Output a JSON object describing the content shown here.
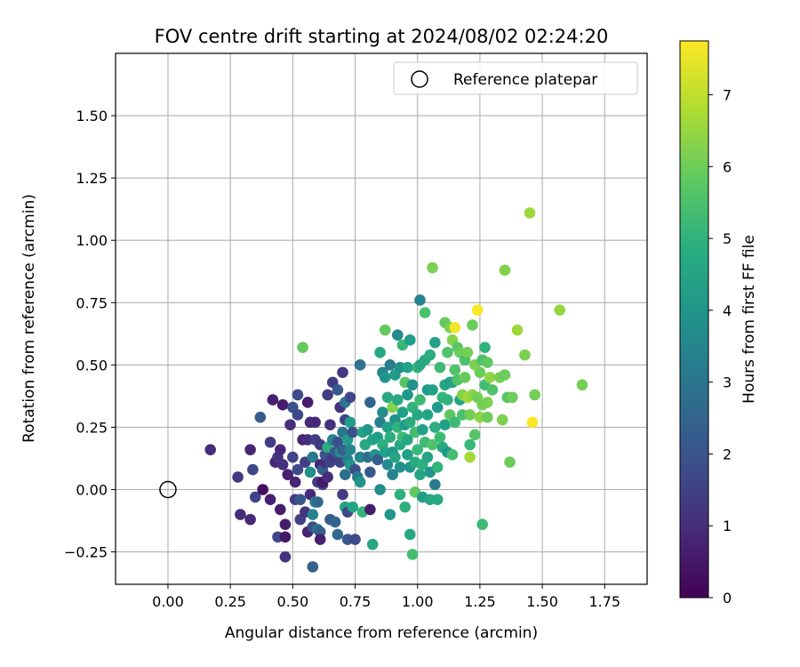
{
  "chart_data": {
    "type": "scatter",
    "title": "FOV centre drift starting at 2024/08/02 02:24:20",
    "xlabel": "Angular distance from reference (arcmin)",
    "ylabel": "Rotation from reference (arcmin)",
    "xlim": [
      -0.21,
      1.92
    ],
    "ylim": [
      -0.38,
      1.75
    ],
    "x_ticks": [
      "0.00",
      "0.25",
      "0.50",
      "0.75",
      "1.00",
      "1.25",
      "1.50",
      "1.75"
    ],
    "y_ticks": [
      "−0.25",
      "0.00",
      "0.25",
      "0.50",
      "0.75",
      "1.00",
      "1.25",
      "1.50"
    ],
    "grid": true,
    "legend": {
      "position": "top-right",
      "entries": [
        {
          "label": "Reference platepar",
          "marker": "open-circle"
        }
      ]
    },
    "reference_point": {
      "x": 0.0,
      "y": 0.0
    },
    "colorbar": {
      "label": "Hours from first FF file",
      "min": 0,
      "max": 7.75,
      "ticks": [
        "0",
        "1",
        "2",
        "3",
        "4",
        "5",
        "6",
        "7"
      ],
      "colormap": "viridis"
    },
    "points": [
      {
        "x": 0.17,
        "y": 0.16,
        "c": 1.0
      },
      {
        "x": 0.28,
        "y": 0.05,
        "c": 1.3
      },
      {
        "x": 0.29,
        "y": -0.1,
        "c": 1.0
      },
      {
        "x": 0.33,
        "y": 0.16,
        "c": 0.8
      },
      {
        "x": 0.33,
        "y": -0.12,
        "c": 0.9
      },
      {
        "x": 0.34,
        "y": 0.08,
        "c": 1.7
      },
      {
        "x": 0.35,
        "y": -0.03,
        "c": 1.6
      },
      {
        "x": 0.37,
        "y": 0.29,
        "c": 2.2
      },
      {
        "x": 0.38,
        "y": 0.0,
        "c": 0.3
      },
      {
        "x": 0.41,
        "y": 0.19,
        "c": 1.4
      },
      {
        "x": 0.41,
        "y": -0.04,
        "c": 0.7
      },
      {
        "x": 0.42,
        "y": 0.36,
        "c": 0.7
      },
      {
        "x": 0.43,
        "y": 0.11,
        "c": 0.8
      },
      {
        "x": 0.44,
        "y": 0.13,
        "c": 1.2
      },
      {
        "x": 0.44,
        "y": -0.19,
        "c": 1.7
      },
      {
        "x": 0.45,
        "y": 0.16,
        "c": 0.9
      },
      {
        "x": 0.45,
        "y": -0.08,
        "c": 0.6
      },
      {
        "x": 0.46,
        "y": 0.34,
        "c": 0.6
      },
      {
        "x": 0.46,
        "y": 0.1,
        "c": 1.1
      },
      {
        "x": 0.47,
        "y": -0.19,
        "c": 0.5
      },
      {
        "x": 0.47,
        "y": -0.27,
        "c": 1.1
      },
      {
        "x": 0.47,
        "y": -0.14,
        "c": 0.6
      },
      {
        "x": 0.48,
        "y": 0.06,
        "c": 0.7
      },
      {
        "x": 0.49,
        "y": 0.26,
        "c": 1.0
      },
      {
        "x": 0.5,
        "y": 0.33,
        "c": 1.9
      },
      {
        "x": 0.5,
        "y": 0.13,
        "c": 1.6
      },
      {
        "x": 0.51,
        "y": -0.04,
        "c": 1.4
      },
      {
        "x": 0.51,
        "y": 0.03,
        "c": 0.8
      },
      {
        "x": 0.52,
        "y": 0.38,
        "c": 1.8
      },
      {
        "x": 0.52,
        "y": 0.3,
        "c": 1.7
      },
      {
        "x": 0.52,
        "y": 0.08,
        "c": 1.8
      },
      {
        "x": 0.53,
        "y": -0.04,
        "c": 2.1
      },
      {
        "x": 0.53,
        "y": -0.12,
        "c": 1.5
      },
      {
        "x": 0.54,
        "y": 0.57,
        "c": 5.9
      },
      {
        "x": 0.54,
        "y": 0.2,
        "c": 0.7
      },
      {
        "x": 0.55,
        "y": 0.11,
        "c": 1.4
      },
      {
        "x": 0.55,
        "y": -0.09,
        "c": 1.2
      },
      {
        "x": 0.56,
        "y": 0.2,
        "c": 1.0
      },
      {
        "x": 0.56,
        "y": 0.35,
        "c": 0.6
      },
      {
        "x": 0.56,
        "y": -0.17,
        "c": 0.8
      },
      {
        "x": 0.57,
        "y": -0.02,
        "c": 0.9
      },
      {
        "x": 0.57,
        "y": 0.07,
        "c": 3.8
      },
      {
        "x": 0.57,
        "y": 0.27,
        "c": 0.9
      },
      {
        "x": 0.58,
        "y": -0.1,
        "c": 3.5
      },
      {
        "x": 0.58,
        "y": 0.13,
        "c": 3.2
      },
      {
        "x": 0.58,
        "y": -0.15,
        "c": 1.9
      },
      {
        "x": 0.58,
        "y": -0.31,
        "c": 2.4
      },
      {
        "x": 0.59,
        "y": -0.05,
        "c": 3.3
      },
      {
        "x": 0.59,
        "y": 0.27,
        "c": 0.9
      },
      {
        "x": 0.59,
        "y": 0.2,
        "c": 1.5
      },
      {
        "x": 0.6,
        "y": -0.16,
        "c": 2.8
      },
      {
        "x": 0.6,
        "y": 0.03,
        "c": 1.3
      },
      {
        "x": 0.6,
        "y": -0.05,
        "c": 2.6
      },
      {
        "x": 0.61,
        "y": 0.18,
        "c": 1.3
      },
      {
        "x": 0.61,
        "y": 0.1,
        "c": 0.8
      },
      {
        "x": 0.61,
        "y": -0.17,
        "c": 2.3
      },
      {
        "x": 0.61,
        "y": -0.2,
        "c": 0.7
      },
      {
        "x": 0.62,
        "y": 0.02,
        "c": 1.6
      },
      {
        "x": 0.62,
        "y": 0.08,
        "c": 2.3
      },
      {
        "x": 0.62,
        "y": 0.03,
        "c": 0.5
      },
      {
        "x": 0.63,
        "y": 0.11,
        "c": 1.0
      },
      {
        "x": 0.63,
        "y": 0.14,
        "c": 2.0
      },
      {
        "x": 0.64,
        "y": 0.38,
        "c": 1.4
      },
      {
        "x": 0.64,
        "y": 0.17,
        "c": 4.8
      },
      {
        "x": 0.64,
        "y": 0.05,
        "c": 1.0
      },
      {
        "x": 0.65,
        "y": 0.26,
        "c": 1.1
      },
      {
        "x": 0.65,
        "y": -0.12,
        "c": 2.2
      },
      {
        "x": 0.65,
        "y": 0.11,
        "c": 1.6
      },
      {
        "x": 0.66,
        "y": 0.43,
        "c": 1.4
      },
      {
        "x": 0.66,
        "y": 0.2,
        "c": 3.4
      },
      {
        "x": 0.66,
        "y": 0.13,
        "c": 1.3
      },
      {
        "x": 0.67,
        "y": -0.13,
        "c": 2.5
      },
      {
        "x": 0.67,
        "y": 0.15,
        "c": 2.1
      },
      {
        "x": 0.68,
        "y": 0.4,
        "c": 2.2
      },
      {
        "x": 0.68,
        "y": 0.19,
        "c": 1.9
      },
      {
        "x": 0.68,
        "y": -0.18,
        "c": 2.6
      },
      {
        "x": 0.69,
        "y": 0.11,
        "c": 1.6
      },
      {
        "x": 0.69,
        "y": 0.33,
        "c": 1.1
      },
      {
        "x": 0.69,
        "y": 0.15,
        "c": 3.7
      },
      {
        "x": 0.7,
        "y": 0.47,
        "c": 1.3
      },
      {
        "x": 0.7,
        "y": 0.23,
        "c": 3.1
      },
      {
        "x": 0.7,
        "y": 0.16,
        "c": 2.4
      },
      {
        "x": 0.7,
        "y": -0.02,
        "c": 1.4
      },
      {
        "x": 0.71,
        "y": 0.35,
        "c": 3.0
      },
      {
        "x": 0.71,
        "y": 0.28,
        "c": 1.6
      },
      {
        "x": 0.71,
        "y": -0.07,
        "c": 4.5
      },
      {
        "x": 0.71,
        "y": 0.06,
        "c": 2.8
      },
      {
        "x": 0.72,
        "y": 0.2,
        "c": 4.2
      },
      {
        "x": 0.72,
        "y": 0.12,
        "c": 3.3
      },
      {
        "x": 0.72,
        "y": -0.2,
        "c": 2.1
      },
      {
        "x": 0.72,
        "y": -0.09,
        "c": 1.7
      },
      {
        "x": 0.73,
        "y": 0.37,
        "c": 1.7
      },
      {
        "x": 0.73,
        "y": 0.27,
        "c": 4.3
      },
      {
        "x": 0.73,
        "y": 0.16,
        "c": 3.6
      },
      {
        "x": 0.73,
        "y": 0.1,
        "c": 4.0
      },
      {
        "x": 0.74,
        "y": -0.07,
        "c": 4.5
      },
      {
        "x": 0.74,
        "y": 0.23,
        "c": 2.0
      },
      {
        "x": 0.75,
        "y": 0.08,
        "c": 1.9
      },
      {
        "x": 0.75,
        "y": -0.2,
        "c": 1.8
      },
      {
        "x": 0.76,
        "y": 0.05,
        "c": 3.2
      },
      {
        "x": 0.77,
        "y": 0.5,
        "c": 2.9
      },
      {
        "x": 0.77,
        "y": 0.13,
        "c": 3.6
      },
      {
        "x": 0.77,
        "y": 0.03,
        "c": 4.0
      },
      {
        "x": 0.78,
        "y": -0.09,
        "c": 5.1
      },
      {
        "x": 0.78,
        "y": 0.23,
        "c": 4.5
      },
      {
        "x": 0.79,
        "y": 0.18,
        "c": 4.7
      },
      {
        "x": 0.8,
        "y": 0.13,
        "c": 2.8
      },
      {
        "x": 0.8,
        "y": 0.24,
        "c": 4.1
      },
      {
        "x": 0.81,
        "y": 0.35,
        "c": 2.5
      },
      {
        "x": 0.81,
        "y": -0.08,
        "c": 0.6
      },
      {
        "x": 0.81,
        "y": 0.07,
        "c": 2.2
      },
      {
        "x": 0.82,
        "y": -0.22,
        "c": 4.6
      },
      {
        "x": 0.82,
        "y": 0.2,
        "c": 4.5
      },
      {
        "x": 0.83,
        "y": 0.14,
        "c": 4.0
      },
      {
        "x": 0.84,
        "y": 0.21,
        "c": 4.3
      },
      {
        "x": 0.84,
        "y": 0.12,
        "c": 2.3
      },
      {
        "x": 0.85,
        "y": 0.55,
        "c": 4.6
      },
      {
        "x": 0.85,
        "y": 0.27,
        "c": 3.3
      },
      {
        "x": 0.85,
        "y": 0.0,
        "c": 3.8
      },
      {
        "x": 0.86,
        "y": 0.47,
        "c": 3.5
      },
      {
        "x": 0.86,
        "y": 0.31,
        "c": 3.8
      },
      {
        "x": 0.86,
        "y": 0.18,
        "c": 4.9
      },
      {
        "x": 0.87,
        "y": 0.45,
        "c": 4.0
      },
      {
        "x": 0.87,
        "y": 0.15,
        "c": 4.4
      },
      {
        "x": 0.87,
        "y": 0.64,
        "c": 5.9
      },
      {
        "x": 0.88,
        "y": 0.37,
        "c": 4.7
      },
      {
        "x": 0.88,
        "y": 0.25,
        "c": 4.4
      },
      {
        "x": 0.88,
        "y": 0.1,
        "c": 3.7
      },
      {
        "x": 0.89,
        "y": 0.5,
        "c": 3.3
      },
      {
        "x": 0.89,
        "y": 0.21,
        "c": 4.8
      },
      {
        "x": 0.89,
        "y": -0.1,
        "c": 4.0
      },
      {
        "x": 0.9,
        "y": 0.33,
        "c": 6.3
      },
      {
        "x": 0.9,
        "y": 0.15,
        "c": 4.1
      },
      {
        "x": 0.9,
        "y": 0.06,
        "c": 3.5
      },
      {
        "x": 0.91,
        "y": 0.46,
        "c": 4.2
      },
      {
        "x": 0.91,
        "y": 0.28,
        "c": 3.9
      },
      {
        "x": 0.91,
        "y": 0.13,
        "c": 4.5
      },
      {
        "x": 0.92,
        "y": 0.62,
        "c": 3.7
      },
      {
        "x": 0.92,
        "y": 0.36,
        "c": 4.7
      },
      {
        "x": 0.92,
        "y": 0.25,
        "c": 5.0
      },
      {
        "x": 0.93,
        "y": 0.49,
        "c": 3.9
      },
      {
        "x": 0.93,
        "y": 0.18,
        "c": 4.6
      },
      {
        "x": 0.93,
        "y": 0.09,
        "c": 3.9
      },
      {
        "x": 0.93,
        "y": -0.02,
        "c": 4.9
      },
      {
        "x": 0.94,
        "y": 0.58,
        "c": 5.2
      },
      {
        "x": 0.94,
        "y": 0.31,
        "c": 4.4
      },
      {
        "x": 0.94,
        "y": 0.21,
        "c": 5.3
      },
      {
        "x": 0.95,
        "y": 0.43,
        "c": 5.7
      },
      {
        "x": 0.95,
        "y": 0.26,
        "c": 4.2
      },
      {
        "x": 0.95,
        "y": -0.07,
        "c": 4.9
      },
      {
        "x": 0.96,
        "y": 0.49,
        "c": 4.4
      },
      {
        "x": 0.96,
        "y": 0.38,
        "c": 4.1
      },
      {
        "x": 0.96,
        "y": 0.2,
        "c": 4.6
      },
      {
        "x": 0.96,
        "y": 0.14,
        "c": 4.4
      },
      {
        "x": 0.97,
        "y": 0.6,
        "c": 4.3
      },
      {
        "x": 0.97,
        "y": 0.27,
        "c": 4.8
      },
      {
        "x": 0.97,
        "y": 0.09,
        "c": 4.0
      },
      {
        "x": 0.97,
        "y": -0.18,
        "c": 4.6
      },
      {
        "x": 0.98,
        "y": 0.42,
        "c": 3.9
      },
      {
        "x": 0.98,
        "y": 0.33,
        "c": 5.0
      },
      {
        "x": 0.98,
        "y": -0.26,
        "c": 5.4
      },
      {
        "x": 0.99,
        "y": 0.23,
        "c": 5.4
      },
      {
        "x": 0.99,
        "y": 0.11,
        "c": 4.7
      },
      {
        "x": 0.99,
        "y": -0.01,
        "c": 5.8
      },
      {
        "x": 1.0,
        "y": 0.49,
        "c": 5.1
      },
      {
        "x": 1.0,
        "y": 0.3,
        "c": 4.6
      },
      {
        "x": 1.0,
        "y": 0.16,
        "c": 5.2
      },
      {
        "x": 1.01,
        "y": 0.76,
        "c": 3.5
      },
      {
        "x": 1.01,
        "y": 0.5,
        "c": 4.6
      },
      {
        "x": 1.01,
        "y": 0.36,
        "c": 5.3
      },
      {
        "x": 1.01,
        "y": 0.06,
        "c": 4.5
      },
      {
        "x": 1.02,
        "y": 0.24,
        "c": 4.4
      },
      {
        "x": 1.02,
        "y": 0.1,
        "c": 4.9
      },
      {
        "x": 1.02,
        "y": -0.03,
        "c": 4.3
      },
      {
        "x": 1.03,
        "y": 0.71,
        "c": 5.5
      },
      {
        "x": 1.03,
        "y": 0.52,
        "c": 4.7
      },
      {
        "x": 1.03,
        "y": 0.19,
        "c": 5.3
      },
      {
        "x": 1.04,
        "y": 0.4,
        "c": 4.2
      },
      {
        "x": 1.04,
        "y": 0.3,
        "c": 4.5
      },
      {
        "x": 1.04,
        "y": 0.13,
        "c": 4.5
      },
      {
        "x": 1.05,
        "y": 0.54,
        "c": 4.8
      },
      {
        "x": 1.05,
        "y": 0.07,
        "c": 4.0
      },
      {
        "x": 1.05,
        "y": -0.04,
        "c": 4.6
      },
      {
        "x": 1.06,
        "y": 0.89,
        "c": 6.2
      },
      {
        "x": 1.06,
        "y": 0.4,
        "c": 4.4
      },
      {
        "x": 1.06,
        "y": 0.18,
        "c": 5.6
      },
      {
        "x": 1.07,
        "y": 0.59,
        "c": 4.4
      },
      {
        "x": 1.07,
        "y": 0.25,
        "c": 4.8
      },
      {
        "x": 1.07,
        "y": 0.02,
        "c": 3.2
      },
      {
        "x": 1.08,
        "y": 0.33,
        "c": 4.2
      },
      {
        "x": 1.08,
        "y": 0.09,
        "c": 5.1
      },
      {
        "x": 1.08,
        "y": -0.04,
        "c": 4.7
      },
      {
        "x": 1.09,
        "y": 0.49,
        "c": 5.3
      },
      {
        "x": 1.09,
        "y": 0.21,
        "c": 5.3
      },
      {
        "x": 1.1,
        "y": 0.37,
        "c": 5.1
      },
      {
        "x": 1.1,
        "y": 0.17,
        "c": 4.7
      },
      {
        "x": 1.11,
        "y": 0.67,
        "c": 5.9
      },
      {
        "x": 1.11,
        "y": 0.42,
        "c": 4.6
      },
      {
        "x": 1.11,
        "y": 0.26,
        "c": 4.4
      },
      {
        "x": 1.12,
        "y": 0.55,
        "c": 5.6
      },
      {
        "x": 1.12,
        "y": 0.36,
        "c": 5.0
      },
      {
        "x": 1.12,
        "y": 0.15,
        "c": 4.2
      },
      {
        "x": 1.13,
        "y": 0.65,
        "c": 6.2
      },
      {
        "x": 1.13,
        "y": 0.43,
        "c": 4.3
      },
      {
        "x": 1.13,
        "y": 0.3,
        "c": 5.8
      },
      {
        "x": 1.14,
        "y": 0.6,
        "c": 6.3
      },
      {
        "x": 1.14,
        "y": 0.43,
        "c": 4.5
      },
      {
        "x": 1.14,
        "y": 0.14,
        "c": 5.4
      },
      {
        "x": 1.15,
        "y": 0.48,
        "c": 5.6
      },
      {
        "x": 1.15,
        "y": 0.27,
        "c": 5.3
      },
      {
        "x": 1.15,
        "y": 0.65,
        "c": 7.6
      },
      {
        "x": 1.16,
        "y": 0.57,
        "c": 5.7
      },
      {
        "x": 1.16,
        "y": 0.44,
        "c": 5.6
      },
      {
        "x": 1.17,
        "y": 0.36,
        "c": 4.5
      },
      {
        "x": 1.17,
        "y": 0.55,
        "c": 6.0
      },
      {
        "x": 1.18,
        "y": 0.38,
        "c": 6.3
      },
      {
        "x": 1.18,
        "y": 0.3,
        "c": 5.5
      },
      {
        "x": 1.19,
        "y": 0.45,
        "c": 5.9
      },
      {
        "x": 1.19,
        "y": 0.52,
        "c": 5.5
      },
      {
        "x": 1.2,
        "y": 0.55,
        "c": 6.1
      },
      {
        "x": 1.2,
        "y": 0.37,
        "c": 6.6
      },
      {
        "x": 1.21,
        "y": 0.3,
        "c": 6.1
      },
      {
        "x": 1.21,
        "y": 0.13,
        "c": 6.7
      },
      {
        "x": 1.21,
        "y": 0.18,
        "c": 5.2
      },
      {
        "x": 1.22,
        "y": 0.66,
        "c": 6.0
      },
      {
        "x": 1.22,
        "y": 0.38,
        "c": 6.4
      },
      {
        "x": 1.23,
        "y": 0.5,
        "c": 6.2
      },
      {
        "x": 1.23,
        "y": 0.22,
        "c": 5.7
      },
      {
        "x": 1.24,
        "y": 0.72,
        "c": 7.7
      },
      {
        "x": 1.24,
        "y": 0.37,
        "c": 6.1
      },
      {
        "x": 1.25,
        "y": 0.29,
        "c": 6.4
      },
      {
        "x": 1.25,
        "y": 0.47,
        "c": 6.0
      },
      {
        "x": 1.26,
        "y": -0.14,
        "c": 5.3
      },
      {
        "x": 1.26,
        "y": 0.52,
        "c": 5.5
      },
      {
        "x": 1.26,
        "y": 0.34,
        "c": 6.1
      },
      {
        "x": 1.27,
        "y": 0.57,
        "c": 5.0
      },
      {
        "x": 1.27,
        "y": 0.42,
        "c": 5.4
      },
      {
        "x": 1.28,
        "y": 0.29,
        "c": 6.0
      },
      {
        "x": 1.28,
        "y": 0.51,
        "c": 5.8
      },
      {
        "x": 1.28,
        "y": 0.35,
        "c": 6.2
      },
      {
        "x": 1.29,
        "y": 0.45,
        "c": 6.4
      },
      {
        "x": 1.3,
        "y": 0.4,
        "c": 5.6
      },
      {
        "x": 1.33,
        "y": 0.45,
        "c": 6.1
      },
      {
        "x": 1.34,
        "y": 0.28,
        "c": 6.2
      },
      {
        "x": 1.35,
        "y": 0.88,
        "c": 6.3
      },
      {
        "x": 1.35,
        "y": 0.46,
        "c": 6.0
      },
      {
        "x": 1.36,
        "y": 0.37,
        "c": 5.7
      },
      {
        "x": 1.37,
        "y": 0.11,
        "c": 6.0
      },
      {
        "x": 1.38,
        "y": 0.37,
        "c": 6.0
      },
      {
        "x": 1.4,
        "y": 0.64,
        "c": 6.6
      },
      {
        "x": 1.43,
        "y": 0.54,
        "c": 6.2
      },
      {
        "x": 1.45,
        "y": 1.11,
        "c": 6.6
      },
      {
        "x": 1.46,
        "y": 0.27,
        "c": 7.7
      },
      {
        "x": 1.47,
        "y": 0.38,
        "c": 6.1
      },
      {
        "x": 1.57,
        "y": 0.72,
        "c": 6.5
      },
      {
        "x": 1.66,
        "y": 0.42,
        "c": 6.1
      }
    ]
  }
}
